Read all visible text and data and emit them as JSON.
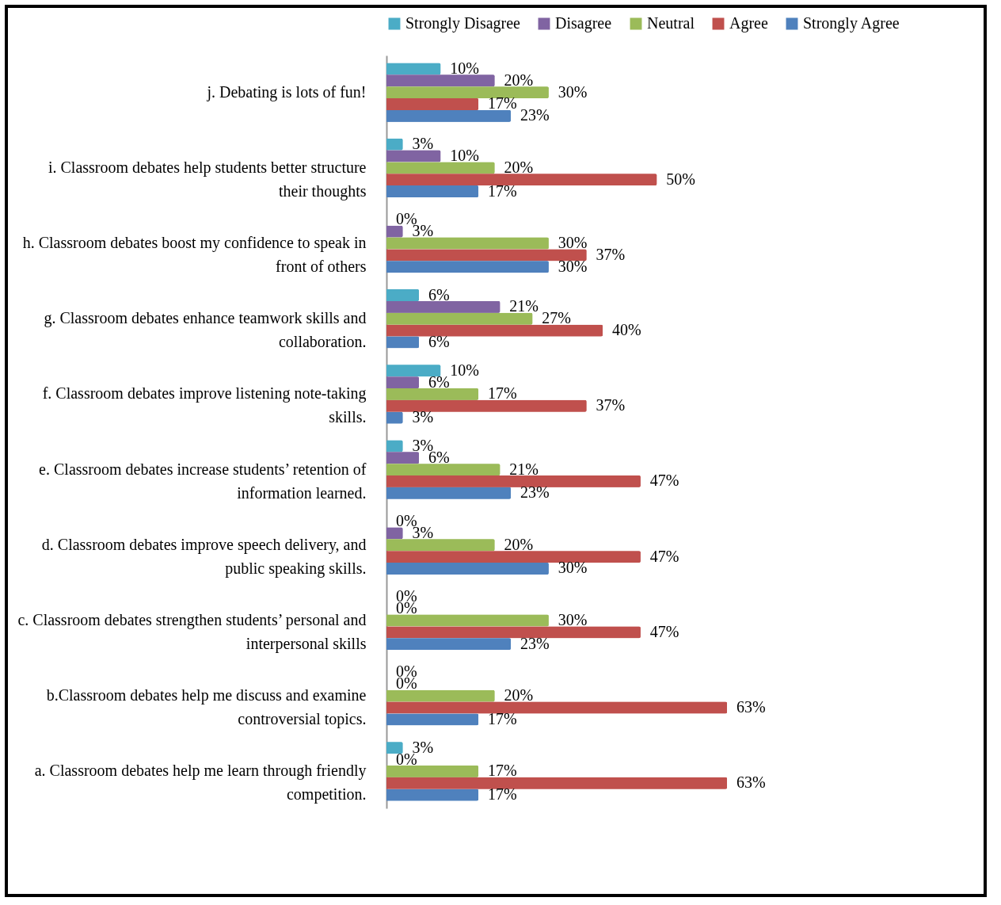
{
  "chart_data": {
    "type": "bar",
    "orientation": "horizontal",
    "legend": "top",
    "categories": [
      "j. Debating is lots of fun!",
      "i. Classroom debates help students better structure their thoughts",
      "h. Classroom debates boost my confidence to speak in front of others",
      "g. Classroom debates enhance teamwork skills and collaboration.",
      "f.  Classroom debates improve listening note-taking skills.",
      "e. Classroom debates increase students’ retention of information learned.",
      "d. Classroom debates improve speech delivery, and public speaking skills.",
      "c. Classroom debates strengthen students’ personal and interpersonal skills",
      "b.Classroom debates help me discuss and examine controversial topics.",
      "a. Classroom debates help me learn through friendly competition."
    ],
    "series": [
      {
        "name": "Strongly Disagree",
        "color": "#4bacc6",
        "values": [
          10,
          3,
          0,
          6,
          10,
          3,
          0,
          0,
          0,
          3
        ],
        "value_labels": [
          "10%",
          "3%",
          "0%",
          "6%",
          "10%",
          "3%",
          "0%",
          "0%",
          "0%",
          "3%"
        ]
      },
      {
        "name": "Disagree",
        "color": "#8064a2",
        "values": [
          20,
          10,
          3,
          21,
          6,
          6,
          3,
          0,
          0,
          0
        ],
        "value_labels": [
          "20%",
          "10%",
          "3%",
          "21%",
          "6%",
          "6%",
          "3%",
          "0%",
          "0%",
          "0%"
        ]
      },
      {
        "name": "Neutral",
        "color": "#9bbb59",
        "values": [
          30,
          20,
          30,
          27,
          17,
          21,
          20,
          30,
          20,
          17
        ],
        "value_labels": [
          "30%",
          "20%",
          "30%",
          "27%",
          "17%",
          "21%",
          "20%",
          "30%",
          "20%",
          "17%"
        ]
      },
      {
        "name": "Agree",
        "color": "#c0504d",
        "values": [
          17,
          50,
          37,
          40,
          37,
          47,
          47,
          47,
          63,
          63
        ],
        "value_labels": [
          "17%",
          "50%",
          "37%",
          "40%",
          "37%",
          "47%",
          "47%",
          "47%",
          "63%",
          "63%"
        ]
      },
      {
        "name": "Strongly Agree",
        "color": "#4f81bd",
        "values": [
          23,
          17,
          30,
          6,
          3,
          23,
          30,
          23,
          17,
          17
        ],
        "value_labels": [
          "23%",
          "17%",
          "30%",
          "6%",
          "3%",
          "23%",
          "30%",
          "23%",
          "17%",
          "17%"
        ]
      }
    ]
  }
}
